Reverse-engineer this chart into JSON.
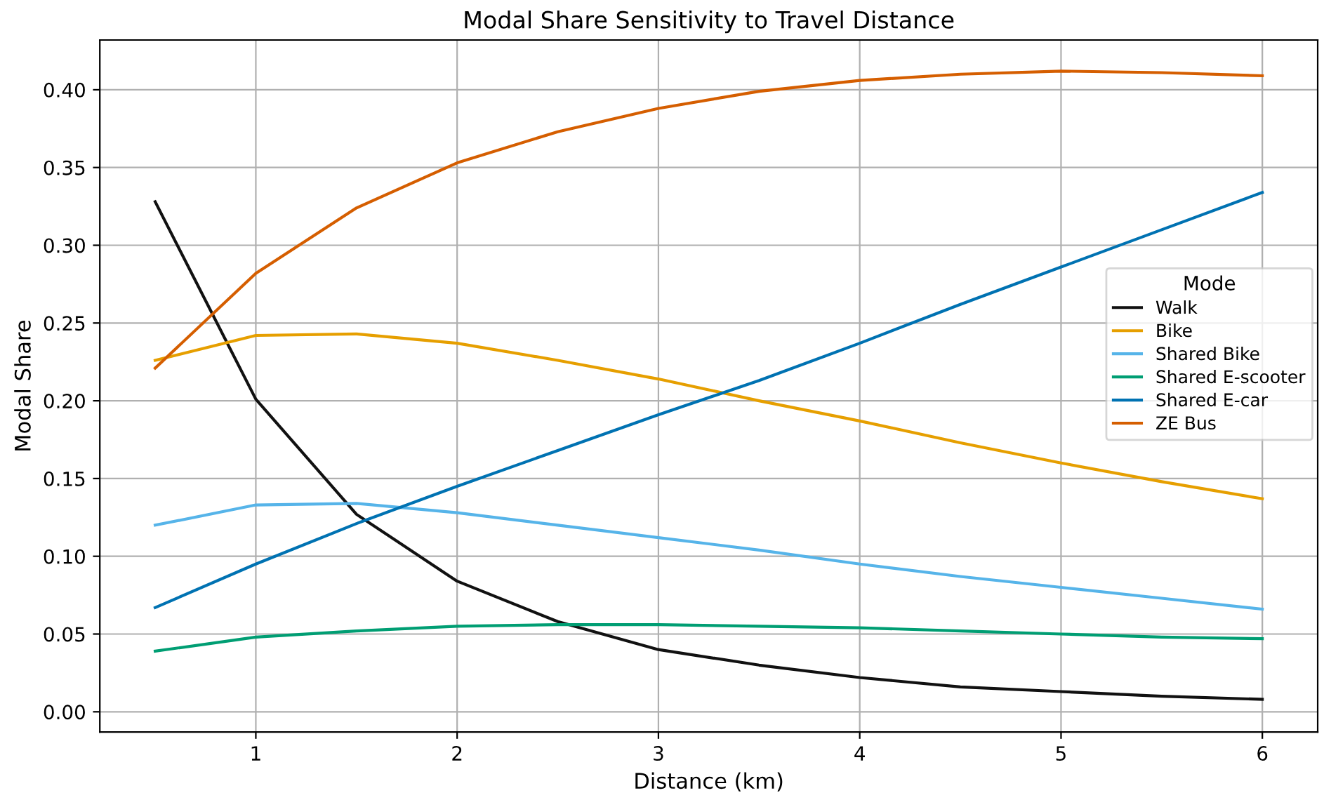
{
  "chart_data": {
    "type": "line",
    "title": "Modal Share Sensitivity to Travel Distance",
    "xlabel": "Distance (km)",
    "ylabel": "Modal Share",
    "legend_title": "Mode",
    "x": [
      0.5,
      1,
      1.5,
      2,
      2.5,
      3,
      3.5,
      4,
      4.5,
      5,
      5.5,
      6
    ],
    "series": [
      {
        "name": "Walk",
        "color": "#111111",
        "values": [
          0.328,
          0.201,
          0.127,
          0.084,
          0.058,
          0.04,
          0.03,
          0.022,
          0.016,
          0.013,
          0.01,
          0.008
        ]
      },
      {
        "name": "Bike",
        "color": "#e69f00",
        "values": [
          0.226,
          0.242,
          0.243,
          0.237,
          0.226,
          0.214,
          0.2,
          0.187,
          0.173,
          0.16,
          0.148,
          0.137
        ]
      },
      {
        "name": "Shared Bike",
        "color": "#56b4e9",
        "values": [
          0.12,
          0.133,
          0.134,
          0.128,
          0.12,
          0.112,
          0.104,
          0.095,
          0.087,
          0.08,
          0.073,
          0.066
        ]
      },
      {
        "name": "Shared E-scooter",
        "color": "#009e73",
        "values": [
          0.039,
          0.048,
          0.052,
          0.055,
          0.056,
          0.056,
          0.055,
          0.054,
          0.052,
          0.05,
          0.048,
          0.047
        ]
      },
      {
        "name": "Shared E-car",
        "color": "#0072b2",
        "values": [
          0.067,
          0.095,
          0.121,
          0.145,
          0.168,
          0.191,
          0.213,
          0.237,
          0.262,
          0.286,
          0.31,
          0.334
        ]
      },
      {
        "name": "ZE Bus",
        "color": "#d55e00",
        "values": [
          0.221,
          0.282,
          0.324,
          0.353,
          0.373,
          0.388,
          0.399,
          0.406,
          0.41,
          0.412,
          0.411,
          0.409
        ]
      }
    ],
    "xlim": [
      0.225,
      6.275
    ],
    "ylim": [
      -0.013,
      0.432
    ],
    "xticks": [
      1,
      2,
      3,
      4,
      5,
      6
    ],
    "yticks": [
      {
        "value": 0,
        "label": "0.00"
      },
      {
        "value": 0.05,
        "label": "0.05"
      },
      {
        "value": 0.1,
        "label": "0.10"
      },
      {
        "value": 0.15,
        "label": "0.15"
      },
      {
        "value": 0.2,
        "label": "0.20"
      },
      {
        "value": 0.25,
        "label": "0.25"
      },
      {
        "value": 0.3,
        "label": "0.30"
      },
      {
        "value": 0.35,
        "label": "0.35"
      },
      {
        "value": 0.4,
        "label": "0.40"
      }
    ],
    "grid": true,
    "legend": "right",
    "marker": "none",
    "line_style": "solid"
  }
}
